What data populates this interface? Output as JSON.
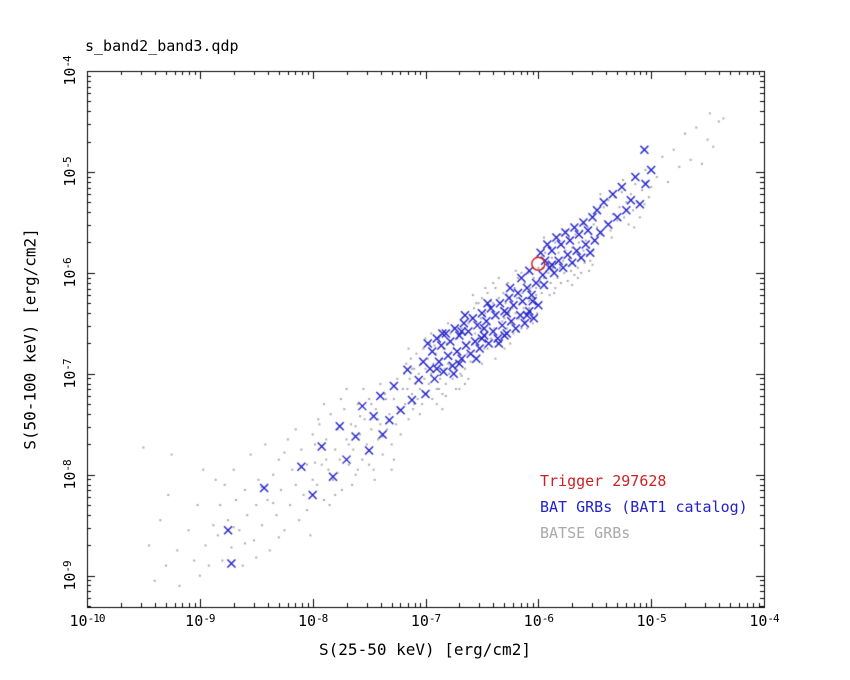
{
  "chart_data": {
    "type": "scatter",
    "title": "s_band2_band3.qdp",
    "xlabel": "S(25-50 keV) [erg/cm2]",
    "ylabel": "S(50-100 keV) [erg/cm2]",
    "x_scale": "log",
    "y_scale": "log",
    "x_log_range": [
      -10,
      -4
    ],
    "y_log_range": [
      -9.31,
      -4
    ],
    "grid": false,
    "axis_color": "#000000",
    "x_tick_exponents": [
      -10,
      -9,
      -8,
      -7,
      -6,
      -5,
      -4
    ],
    "y_tick_exponents": [
      -4,
      -5,
      -6,
      -7,
      -8,
      -9
    ],
    "legend": {
      "position": "lower-right",
      "items": [
        {
          "label": "Trigger 297628",
          "color": "#cc2222"
        },
        {
          "label": "BAT GRBs (BAT1 catalog)",
          "color": "#2222cc"
        },
        {
          "label": "BATSE GRBs",
          "color": "#aaaaaa"
        }
      ]
    },
    "series": [
      {
        "name": "BATSE GRBs",
        "marker": "dot",
        "color": "#aaaaaa",
        "points_log10": [
          -9.5,
          -7.73,
          -9.45,
          -8.7,
          -9.4,
          -9.05,
          -9.35,
          -8.45,
          -9.3,
          -8.9,
          -9.28,
          -8.2,
          -9.25,
          -7.8,
          -9.2,
          -8.75,
          -9.18,
          -9.1,
          -9.1,
          -8.55,
          -9.05,
          -8.85,
          -9.02,
          -8.3,
          -9.0,
          -9.0,
          -8.97,
          -7.95,
          -8.95,
          -8.7,
          -8.92,
          -8.9,
          -8.88,
          -8.5,
          -8.86,
          -8.05,
          -8.84,
          -8.6,
          -8.82,
          -8.3,
          -8.8,
          -8.85,
          -8.78,
          -8.1,
          -8.75,
          -8.45,
          -8.72,
          -8.72,
          -8.7,
          -7.95,
          -8.68,
          -8.25,
          -8.65,
          -8.55,
          -8.62,
          -8.9,
          -8.6,
          -8.15,
          -8.58,
          -8.4,
          -8.55,
          -7.8,
          -8.52,
          -8.65,
          -8.5,
          -8.3,
          -8.48,
          -8.05,
          -8.45,
          -8.5,
          -8.42,
          -7.7,
          -8.4,
          -8.25,
          -8.38,
          -8.75,
          -8.35,
          -8.0,
          -8.32,
          -8.4,
          -8.3,
          -7.85,
          -8.28,
          -8.15,
          -8.25,
          -8.55,
          -8.22,
          -7.65,
          -8.2,
          -8.3,
          -8.18,
          -7.95,
          -8.15,
          -8.1,
          -8.12,
          -8.45,
          -8.1,
          -7.75,
          -8.08,
          -8.2,
          -8.05,
          -7.9,
          -8.02,
          -8.6,
          -8.0,
          -8.05,
          -8.0,
          -7.6,
          -8.3,
          -8.62,
          -8.5,
          -8.82,
          -8.15,
          -7.55,
          -8.6,
          -8.68,
          -8.7,
          -8.52,
          -8.45,
          -8.12,
          -8.25,
          -7.78,
          -8.05,
          -8.35,
          -8.35,
          -8.28,
          -7.98,
          -7.7,
          -7.96,
          -8.1,
          -7.94,
          -7.5,
          -7.92,
          -7.9,
          -7.9,
          -8.25,
          -7.88,
          -7.65,
          -7.86,
          -7.95,
          -7.84,
          -7.4,
          -7.82,
          -8.05,
          -7.8,
          -7.75,
          -7.78,
          -7.55,
          -7.76,
          -7.85,
          -7.74,
          -8.15,
          -7.72,
          -7.35,
          -7.7,
          -7.65,
          -7.68,
          -7.9,
          -7.66,
          -7.5,
          -7.64,
          -7.75,
          -7.62,
          -8.0,
          -7.6,
          -7.3,
          -7.58,
          -7.6,
          -7.56,
          -7.85,
          -7.54,
          -7.45,
          -7.52,
          -7.7,
          -7.5,
          -7.25,
          -7.48,
          -7.55,
          -7.46,
          -7.95,
          -7.44,
          -7.35,
          -7.42,
          -7.65,
          -7.4,
          -7.5,
          -7.38,
          -7.8,
          -7.36,
          -7.2,
          -7.34,
          -7.55,
          -7.32,
          -7.4,
          -7.3,
          -7.7,
          -7.28,
          -7.25,
          -7.26,
          -7.5,
          -7.24,
          -7.35,
          -7.22,
          -7.6,
          -7.2,
          -7.15,
          -7.9,
          -7.3,
          -7.8,
          -8.2,
          -7.7,
          -7.15,
          -7.6,
          -7.95,
          -7.5,
          -7.9,
          -7.4,
          -7.1,
          -7.3,
          -7.95,
          -7.25,
          -7.05,
          -7.45,
          -8.05,
          -7.55,
          -7.15,
          -7.65,
          -8.1,
          -7.75,
          -7.25,
          -7.85,
          -8.3,
          -7.95,
          -7.45,
          -7.35,
          -7.25,
          -7.28,
          -7.85,
          -7.48,
          -7.3,
          -7.68,
          -7.7,
          -7.88,
          -7.85,
          -7.58,
          -7.42,
          -7.38,
          -7.62,
          -7.78,
          -7.98,
          -7.98,
          -7.88,
          -7.42,
          -7.45,
          -7.62,
          -7.52,
          -7.19,
          -7.0,
          -7.18,
          -7.3,
          -7.17,
          -6.9,
          -7.16,
          -7.15,
          -7.15,
          -7.45,
          -7.14,
          -7.05,
          -7.13,
          -6.85,
          -7.12,
          -7.2,
          -7.11,
          -7.35,
          -7.1,
          -6.95,
          -7.09,
          -7.1,
          -7.08,
          -6.8,
          -7.07,
          -7.25,
          -7.06,
          -7.0,
          -7.05,
          -7.15,
          -7.04,
          -6.9,
          -7.03,
          -7.3,
          -7.02,
          -6.75,
          -7.01,
          -7.05,
          -7.0,
          -6.95,
          -6.99,
          -7.2,
          -6.98,
          -6.85,
          -6.97,
          -7.1,
          -6.96,
          -6.7,
          -6.95,
          -7.0,
          -6.94,
          -7.25,
          -6.93,
          -6.9,
          -6.92,
          -7.05,
          -6.91,
          -6.8,
          -6.9,
          -7.15,
          -6.89,
          -6.95,
          -6.88,
          -6.65,
          -6.87,
          -7.05,
          -6.86,
          -6.85,
          -6.85,
          -7.2,
          -6.84,
          -6.75,
          -6.83,
          -6.95,
          -6.82,
          -7.1,
          -6.81,
          -6.7,
          -6.8,
          -6.9,
          -6.79,
          -7.0,
          -6.78,
          -6.6,
          -6.77,
          -6.85,
          -6.76,
          -7.05,
          -6.75,
          -6.75,
          -6.74,
          -6.95,
          -6.73,
          -7.15,
          -6.72,
          -6.65,
          -6.71,
          -6.9,
          -6.7,
          -6.8,
          -6.69,
          -7.0,
          -6.68,
          -6.55,
          -6.67,
          -6.85,
          -6.66,
          -6.7,
          -6.65,
          -6.95,
          -6.64,
          -6.6,
          -6.63,
          -6.8,
          -6.62,
          -7.05,
          -6.61,
          -6.68,
          -6.6,
          -6.88,
          -7.15,
          -6.75,
          -7.05,
          -7.4,
          -6.95,
          -6.6,
          -6.85,
          -7.35,
          -6.75,
          -6.55,
          -6.65,
          -7.1,
          -7.1,
          -7.3,
          -7.0,
          -6.65,
          -6.9,
          -7.3,
          -6.8,
          -6.5,
          -6.7,
          -7.15,
          -6.62,
          -6.5,
          -7.12,
          -6.95,
          -6.88,
          -7.15,
          -6.78,
          -6.92,
          -6.68,
          -7.02,
          -6.92,
          -6.72,
          -7.02,
          -7.18,
          -6.72,
          -6.78,
          -6.82,
          -7.22,
          -6.59,
          -6.45,
          -6.58,
          -6.7,
          -6.57,
          -6.35,
          -6.56,
          -6.6,
          -6.55,
          -6.85,
          -6.54,
          -6.5,
          -6.53,
          -6.3,
          -6.52,
          -6.65,
          -6.51,
          -6.45,
          -6.5,
          -6.25,
          -6.49,
          -6.55,
          -6.48,
          -6.75,
          -6.47,
          -6.4,
          -6.46,
          -6.6,
          -6.45,
          -6.2,
          -6.44,
          -6.5,
          -6.43,
          -6.35,
          -6.42,
          -6.65,
          -6.41,
          -6.45,
          -6.4,
          -6.3,
          -6.39,
          -6.55,
          -6.38,
          -6.15,
          -6.37,
          -6.4,
          -6.36,
          -6.7,
          -6.35,
          -6.25,
          -6.34,
          -6.5,
          -6.33,
          -6.35,
          -6.32,
          -6.6,
          -6.31,
          -6.2,
          -6.3,
          -6.45,
          -6.29,
          -6.3,
          -6.28,
          -6.55,
          -6.27,
          -6.1,
          -6.26,
          -6.4,
          -6.25,
          -6.25,
          -6.24,
          -6.5,
          -6.23,
          -6.35,
          -6.22,
          -6.6,
          -6.21,
          -6.15,
          -6.2,
          -6.4,
          -6.19,
          -6.25,
          -6.18,
          -6.05,
          -6.17,
          -6.45,
          -6.16,
          -6.3,
          -6.15,
          -6.55,
          -6.14,
          -6.2,
          -6.13,
          -6.35,
          -6.12,
          -6.1,
          -6.11,
          -6.4,
          -6.1,
          -6.25,
          -6.09,
          -6.0,
          -6.08,
          -6.35,
          -6.07,
          -6.15,
          -6.06,
          -6.45,
          -6.05,
          -6.25,
          -6.04,
          -6.05,
          -6.03,
          -6.3,
          -6.02,
          -6.15,
          -6.01,
          -6.4,
          -6.0,
          -5.95,
          -6.55,
          -6.3,
          -6.45,
          -6.75,
          -6.35,
          -6.05,
          -6.25,
          -6.7,
          -6.15,
          -6.0,
          -6.05,
          -6.5,
          -6.5,
          -6.9,
          -6.4,
          -6.1,
          -6.3,
          -6.75,
          -6.2,
          -5.98,
          -6.1,
          -6.55,
          -6.58,
          -6.22,
          -6.48,
          -6.42,
          -6.38,
          -6.85,
          -6.28,
          -6.22,
          -6.18,
          -6.58,
          -6.08,
          -6.28,
          -6.52,
          -6.55,
          -6.42,
          -6.28,
          -6.32,
          -6.48,
          -6.22,
          -6.32,
          -6.12,
          -6.48,
          -6.02,
          -6.22,
          -6.47,
          -6.15,
          -6.07,
          -6.38,
          -5.99,
          -6.1,
          -5.98,
          -5.85,
          -5.97,
          -6.2,
          -5.96,
          -5.95,
          -5.95,
          -6.05,
          -5.94,
          -5.8,
          -5.93,
          -6.15,
          -5.92,
          -5.9,
          -5.91,
          -6.0,
          -5.9,
          -5.75,
          -5.89,
          -6.1,
          -5.88,
          -5.85,
          -5.87,
          -5.95,
          -5.86,
          -6.2,
          -5.85,
          -5.7,
          -5.84,
          -5.9,
          -5.83,
          -6.05,
          -5.82,
          -5.8,
          -5.81,
          -5.95,
          -5.8,
          -6.1,
          -5.79,
          -5.72,
          -5.78,
          -5.88,
          -5.77,
          -6.0,
          -5.76,
          -5.78,
          -5.75,
          -5.92,
          -5.74,
          -6.08,
          -5.73,
          -5.65,
          -5.72,
          -5.85,
          -5.71,
          -5.98,
          -5.7,
          -5.75,
          -5.69,
          -5.9,
          -5.68,
          -6.02,
          -5.67,
          -5.62,
          -5.66,
          -5.8,
          -5.65,
          -5.95,
          -5.64,
          -5.7,
          -5.63,
          -5.85,
          -5.62,
          -6.0,
          -5.61,
          -5.58,
          -5.6,
          -5.78,
          -5.59,
          -5.9,
          -5.58,
          -5.68,
          -5.57,
          -5.82,
          -5.56,
          -5.55,
          -5.55,
          -5.75,
          -5.54,
          -5.88,
          -5.53,
          -5.62,
          -5.52,
          -5.78,
          -5.51,
          -5.52,
          -5.5,
          -5.68,
          -5.95,
          -5.65,
          -5.85,
          -6.15,
          -5.75,
          -5.58,
          -5.65,
          -6.05,
          -5.55,
          -5.98,
          -5.9,
          -6.22,
          -5.8,
          -5.62,
          -5.7,
          -6.12,
          -5.6,
          -5.52,
          -5.52,
          -5.92,
          -5.48,
          -5.55,
          -5.46,
          -5.4,
          -5.44,
          -5.62,
          -5.42,
          -5.35,
          -5.4,
          -5.5,
          -5.38,
          -5.28,
          -5.36,
          -5.58,
          -5.34,
          -5.42,
          -5.32,
          -5.25,
          -5.3,
          -5.48,
          -5.28,
          -5.35,
          -5.26,
          -5.2,
          -5.24,
          -5.45,
          -5.22,
          -5.3,
          -5.2,
          -5.52,
          -5.18,
          -5.22,
          -5.16,
          -5.38,
          -5.14,
          -5.12,
          -5.12,
          -5.3,
          -5.1,
          -5.45,
          -5.08,
          -5.18,
          -5.06,
          -5.32,
          -5.04,
          -5.1,
          -5.02,
          -5.25,
          -5.0,
          -5.15,
          -5.45,
          -5.22,
          -5.35,
          -5.65,
          -5.25,
          -5.08,
          -5.15,
          -5.55,
          -5.05,
          -4.98,
          -4.95,
          -5.05,
          -4.9,
          -4.85,
          -4.85,
          -5.1,
          -4.8,
          -4.78,
          -4.75,
          -4.95,
          -4.7,
          -4.62,
          -4.65,
          -4.88,
          -4.6,
          -4.56,
          -4.55,
          -4.92,
          -4.5,
          -4.68,
          -4.45,
          -4.75,
          -4.4,
          -4.5,
          -4.36,
          -4.47,
          -4.48,
          -4.42
        ]
      },
      {
        "name": "BAT GRBs (BAT1 catalog)",
        "marker": "x",
        "color": "#2222cc",
        "points_log10": [
          -8.75,
          -8.55,
          -8.72,
          -8.88,
          -8.43,
          -8.13,
          -8.1,
          -7.92,
          -8.0,
          -8.2,
          -7.92,
          -7.72,
          -7.82,
          -8.02,
          -7.76,
          -7.52,
          -7.7,
          -7.85,
          -7.62,
          -7.62,
          -7.56,
          -7.32,
          -7.5,
          -7.76,
          -7.46,
          -7.42,
          -7.4,
          -7.22,
          -7.38,
          -7.6,
          -7.32,
          -7.46,
          -7.28,
          -7.12,
          -7.22,
          -7.36,
          -7.16,
          -6.96,
          -7.12,
          -7.26,
          -7.06,
          -7.06,
          -7.02,
          -6.88,
          -7.0,
          -7.2,
          -6.98,
          -6.7,
          -6.96,
          -6.95,
          -6.94,
          -6.78,
          -6.92,
          -7.05,
          -6.9,
          -6.65,
          -6.88,
          -6.88,
          -6.86,
          -6.72,
          -6.84,
          -6.98,
          -6.82,
          -6.6,
          -6.8,
          -6.82,
          -6.78,
          -6.68,
          -6.76,
          -6.92,
          -6.74,
          -6.55,
          -6.72,
          -6.78,
          -6.7,
          -6.62,
          -6.68,
          -6.85,
          -6.66,
          -6.5,
          -6.64,
          -6.72,
          -6.62,
          -6.58,
          -6.6,
          -6.8,
          -6.58,
          -6.45,
          -6.56,
          -6.68,
          -6.54,
          -6.52,
          -6.52,
          -6.75,
          -6.5,
          -6.4,
          -6.48,
          -6.62,
          -6.46,
          -6.48,
          -6.44,
          -6.7,
          -6.42,
          -6.35,
          -6.4,
          -6.58,
          -6.38,
          -6.42,
          -6.36,
          -6.65,
          -6.34,
          -6.3,
          -6.32,
          -6.52,
          -6.3,
          -6.38,
          -6.28,
          -6.6,
          -6.26,
          -6.25,
          -6.24,
          -6.48,
          -6.22,
          -6.32,
          -6.2,
          -6.55,
          -6.18,
          -6.2,
          -6.16,
          -6.42,
          -6.14,
          -6.28,
          -6.12,
          -6.5,
          -6.1,
          -6.15,
          -6.08,
          -6.38,
          -6.06,
          -6.22,
          -6.04,
          -6.45,
          -6.02,
          -6.1,
          -6.0,
          -6.32,
          -5.98,
          -5.8,
          -5.96,
          -6.02,
          -5.94,
          -5.88,
          -5.92,
          -5.72,
          -5.9,
          -5.95,
          -5.88,
          -5.78,
          -5.86,
          -6.0,
          -5.84,
          -5.65,
          -5.82,
          -5.88,
          -5.8,
          -5.72,
          -5.78,
          -5.95,
          -5.76,
          -5.6,
          -5.74,
          -5.82,
          -5.72,
          -5.68,
          -5.7,
          -5.9,
          -5.68,
          -5.55,
          -5.66,
          -5.78,
          -5.64,
          -5.62,
          -5.62,
          -5.85,
          -5.6,
          -5.5,
          -5.58,
          -5.72,
          -5.56,
          -5.58,
          -5.54,
          -5.8,
          -5.52,
          -5.45,
          -5.5,
          -5.68,
          -6.9,
          -6.95,
          -6.7,
          -6.9,
          -6.5,
          -6.65,
          -6.3,
          -6.62,
          -6.1,
          -6.42,
          -6.85,
          -6.6,
          -6.65,
          -6.42,
          -6.45,
          -6.3,
          -6.25,
          -6.15,
          -6.05,
          -6.28,
          -6.75,
          -7.0,
          -6.55,
          -6.85,
          -6.35,
          -6.7,
          -6.15,
          -6.05,
          -5.95,
          -6.12,
          -6.68,
          -6.58,
          -6.48,
          -6.55,
          -6.28,
          -6.4,
          -6.08,
          -5.98,
          -5.88,
          -5.92,
          -5.48,
          -5.38,
          -5.45,
          -5.6,
          -5.42,
          -5.3,
          -5.38,
          -5.52,
          -5.34,
          -5.22,
          -5.3,
          -5.45,
          -5.26,
          -5.15,
          -5.22,
          -5.38,
          -5.18,
          -5.28,
          -5.14,
          -5.05,
          -5.1,
          -5.32,
          -5.05,
          -5.12,
          -5.0,
          -4.98,
          -5.06,
          -4.78
        ]
      },
      {
        "name": "Trigger 297628",
        "marker": "circle-open",
        "color": "#cc2222",
        "points_log10": [
          -6.0,
          -5.91
        ],
        "approx_value": {
          "x": "1.0e-6",
          "y": "1.2e-6"
        }
      }
    ]
  }
}
